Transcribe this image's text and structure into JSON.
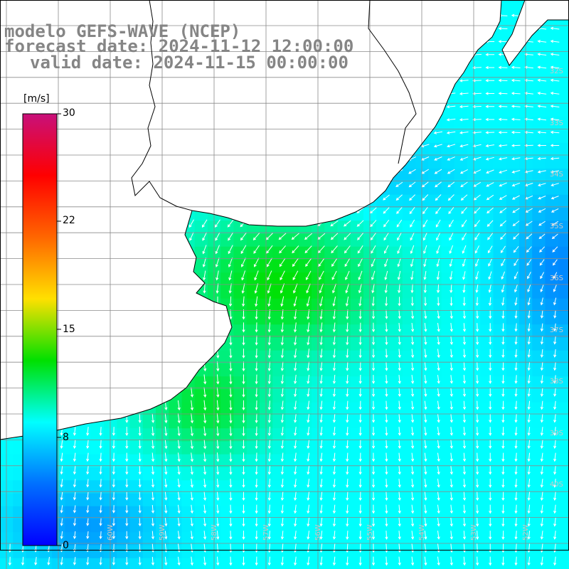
{
  "title": {
    "line1": "modelo GEFS-WAVE (NCEP)",
    "line2": "forecast date: 2024-11-12 12:00:00",
    "line3": "valid date: 2024-11-15 00:00:00"
  },
  "colorbar": {
    "unit": "[m/s]",
    "min": 0,
    "max": 30,
    "ticks": [
      "30",
      "22",
      "15",
      "8",
      "0"
    ],
    "colors": [
      "#c8107a",
      "#ff0000",
      "#ff6600",
      "#ffe000",
      "#00e000",
      "#00ffff",
      "#0070ff",
      "#0000ff"
    ]
  },
  "grid": {
    "lat_labels": [
      "32S",
      "33S",
      "34S",
      "35S",
      "36S",
      "37S",
      "38S",
      "39S",
      "40S"
    ],
    "lon_labels": [
      "60W",
      "59W",
      "58W",
      "57W",
      "56W",
      "55W",
      "54W",
      "53W",
      "52W"
    ]
  },
  "map": {
    "variable": "wind speed",
    "land_color": "#ffffff",
    "coast_color": "#000000",
    "grid_color": "#8a8a8a",
    "arrow_color": "#ffffff"
  }
}
